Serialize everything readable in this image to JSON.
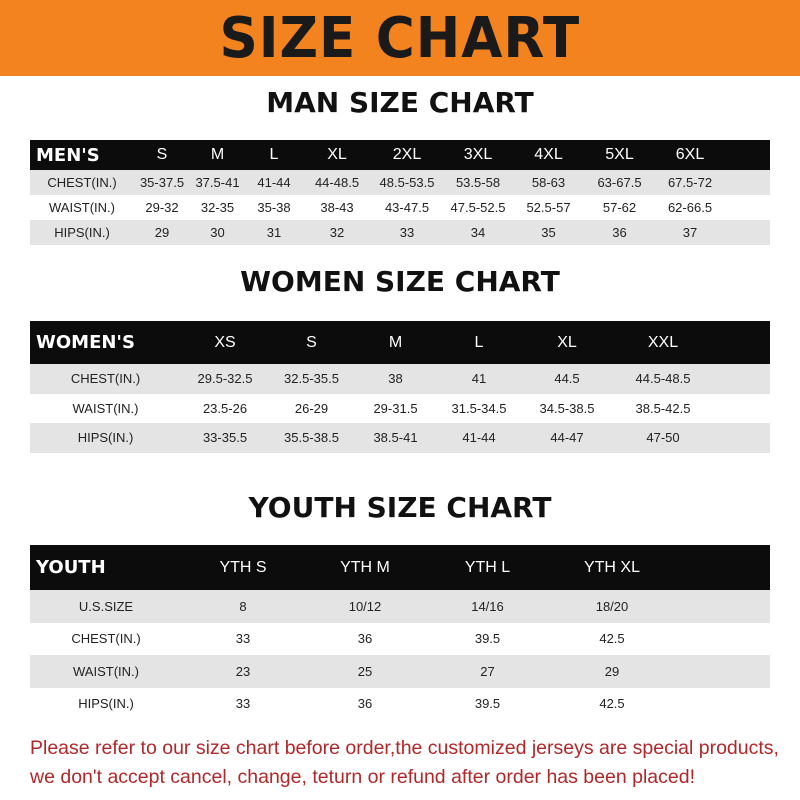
{
  "banner_title": "SIZE CHART",
  "men": {
    "title": "MAN SIZE CHART",
    "header": [
      "MEN'S",
      "S",
      "M",
      "L",
      "XL",
      "2XL",
      "3XL",
      "4XL",
      "5XL",
      "6XL"
    ],
    "rows": [
      [
        "CHEST(IN.)",
        "35-37.5",
        "37.5-41",
        "41-44",
        "44-48.5",
        "48.5-53.5",
        "53.5-58",
        "58-63",
        "63-67.5",
        "67.5-72"
      ],
      [
        "WAIST(IN.)",
        "29-32",
        "32-35",
        "35-38",
        "38-43",
        "43-47.5",
        "47.5-52.5",
        "52.5-57",
        "57-62",
        "62-66.5"
      ],
      [
        "HIPS(IN.)",
        "29",
        "30",
        "31",
        "32",
        "33",
        "34",
        "35",
        "36",
        "37"
      ]
    ]
  },
  "women": {
    "title": "WOMEN SIZE CHART",
    "header": [
      "WOMEN'S",
      "XS",
      "S",
      "M",
      "L",
      "XL",
      "XXL"
    ],
    "rows": [
      [
        "CHEST(IN.)",
        "29.5-32.5",
        "32.5-35.5",
        "38",
        "41",
        "44.5",
        "44.5-48.5"
      ],
      [
        "WAIST(IN.)",
        "23.5-26",
        "26-29",
        "29-31.5",
        "31.5-34.5",
        "34.5-38.5",
        "38.5-42.5"
      ],
      [
        "HIPS(IN.)",
        "33-35.5",
        "35.5-38.5",
        "38.5-41",
        "41-44",
        "44-47",
        "47-50"
      ]
    ]
  },
  "youth": {
    "title": "YOUTH SIZE CHART",
    "header": [
      "YOUTH",
      "YTH S",
      "YTH M",
      "YTH L",
      "YTH XL"
    ],
    "rows": [
      [
        "U.S.SIZE",
        "8",
        "10/12",
        "14/16",
        "18/20"
      ],
      [
        "CHEST(IN.)",
        "33",
        "36",
        "39.5",
        "42.5"
      ],
      [
        "WAIST(IN.)",
        "23",
        "25",
        "27",
        "29"
      ],
      [
        "HIPS(IN.)",
        "33",
        "36",
        "39.5",
        "42.5"
      ]
    ]
  },
  "note": {
    "line1": "Please refer to our size chart before order,the customized jerseys are special products,",
    "line2": "we don't accept cancel, change, teturn or refund after order has been placed!"
  },
  "colors": {
    "banner": "#f2831f",
    "header_row": "#0c0c0c",
    "stripe": "#e4e4e4",
    "note": "#b0282a"
  }
}
